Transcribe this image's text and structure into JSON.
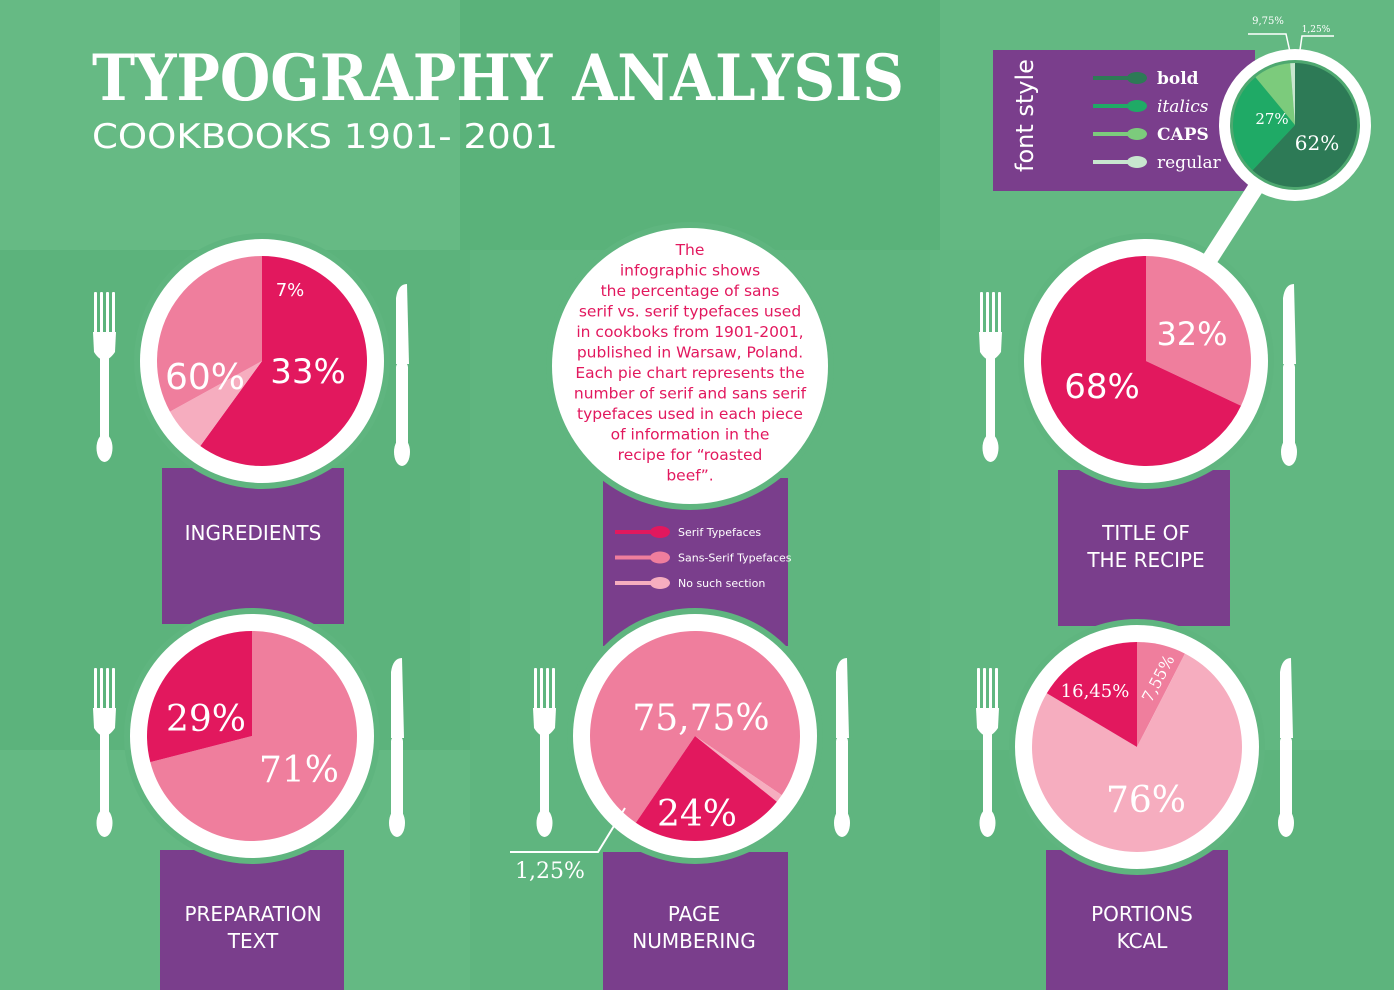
{
  "title": "TYPOGRAPHY ANALYSIS",
  "subtitle": "COOKBOOKS 1901- 2001",
  "intro_lines": [
    "The",
    "infographic shows",
    "the percentage of sans",
    "serif vs. serif typefaces used",
    "in cookboks from 1901-2001,",
    "published in Warsaw, Poland.",
    "Each pie chart represents the",
    "number of serif and sans serif",
    "typefaces used in each piece",
    "of information in the",
    "recipe for “roasted",
    "beef”."
  ],
  "legend": {
    "items": [
      {
        "label": "Serif Typefaces",
        "color": "#e2185e"
      },
      {
        "label": "Sans-Serif Typefaces",
        "color": "#ef7e9d"
      },
      {
        "label": "No such section",
        "color": "#f6adbf"
      }
    ]
  },
  "font_style": {
    "title": "font style",
    "legend": [
      {
        "label": "bold",
        "color": "#2d7a56"
      },
      {
        "label": "italics",
        "color": "#1faa66"
      },
      {
        "label": "CAPS",
        "color": "#7ccb7c"
      },
      {
        "label": "regular",
        "color": "#c8e6cf"
      }
    ]
  },
  "colors": {
    "background": "#5fb57f",
    "band": "#7a3e8c",
    "plate": "#ffffff",
    "serif": "#e2185e",
    "sans_serif": "#ef7e9d",
    "no_section": "#f6adbf"
  },
  "chart_data": [
    {
      "type": "pie",
      "category": "INGREDIENTS",
      "category_lines": [
        "INGREDIENTS"
      ],
      "slices": [
        {
          "label": "60%",
          "value": 60,
          "kind": "serif"
        },
        {
          "label": "7%",
          "value": 7,
          "kind": "no_section"
        },
        {
          "label": "33%",
          "value": 33,
          "kind": "sans_serif"
        }
      ]
    },
    {
      "type": "pie",
      "category": "TITLE OF THE RECIPE",
      "category_lines": [
        "TITLE OF",
        "THE RECIPE"
      ],
      "slices": [
        {
          "label": "32%",
          "value": 32,
          "kind": "sans_serif"
        },
        {
          "label": "68%",
          "value": 68,
          "kind": "serif"
        }
      ]
    },
    {
      "type": "pie",
      "category": "PREPARATION TEXT",
      "category_lines": [
        "PREPARATION",
        "TEXT"
      ],
      "slices": [
        {
          "label": "71%",
          "value": 71,
          "kind": "sans_serif"
        },
        {
          "label": "29%",
          "value": 29,
          "kind": "serif"
        }
      ]
    },
    {
      "type": "pie",
      "category": "PAGE NUMBERING",
      "category_lines": [
        "PAGE",
        "NUMBERING"
      ],
      "slices": [
        {
          "label": "75,75%",
          "value": 75.75,
          "kind": "sans_serif"
        },
        {
          "label": "1,25%",
          "value": 1.25,
          "kind": "no_section"
        },
        {
          "label": "24%",
          "value": 24,
          "kind": "serif"
        }
      ]
    },
    {
      "type": "pie",
      "category": "PORTIONS KCAL",
      "category_lines": [
        "PORTIONS",
        "KCAL"
      ],
      "slices": [
        {
          "label": "7,55%",
          "value": 7.55,
          "kind": "sans_serif"
        },
        {
          "label": "76%",
          "value": 76,
          "kind": "no_section"
        },
        {
          "label": "16,45%",
          "value": 16.45,
          "kind": "serif"
        }
      ]
    },
    {
      "type": "pie",
      "category": "font style",
      "category_lines": [],
      "slices": [
        {
          "label": "62%",
          "value": 62,
          "kind": "bold"
        },
        {
          "label": "27%",
          "value": 27,
          "kind": "italics"
        },
        {
          "label": "9,75%",
          "value": 9.75,
          "kind": "caps"
        },
        {
          "label": "1,25%",
          "value": 1.25,
          "kind": "regular"
        }
      ]
    }
  ]
}
